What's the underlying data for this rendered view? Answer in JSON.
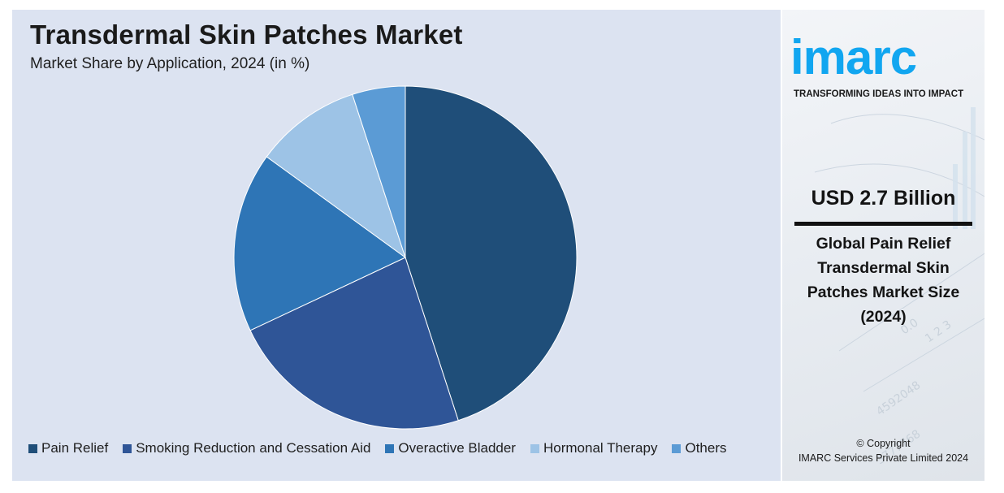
{
  "header": {
    "title": "Transdermal Skin Patches Market",
    "subtitle": "Market Share by Application, 2024 (in %)"
  },
  "chart_data": {
    "type": "pie",
    "title": "Transdermal Skin Patches Market",
    "subtitle": "Market Share by Application, 2024 (in %)",
    "start_angle_deg": 0,
    "direction": "clockwise",
    "legend_position": "bottom",
    "slices": [
      {
        "label": "Pain Relief",
        "value": 45,
        "color": "#1f4e79"
      },
      {
        "label": "Smoking Reduction and Cessation Aid",
        "value": 23,
        "color": "#2f5597"
      },
      {
        "label": "Overactive Bladder",
        "value": 17,
        "color": "#2e75b6"
      },
      {
        "label": "Hormonal Therapy",
        "value": 10,
        "color": "#9dc3e6"
      },
      {
        "label": "Others",
        "value": 5,
        "color": "#5b9bd5"
      }
    ]
  },
  "sidebar": {
    "logo_text": "imarc",
    "logo_tagline": "TRANSFORMING IDEAS INTO IMPACT",
    "logo_color": "#11a6f0",
    "market_size": "USD 2.7 Billion",
    "market_size_desc": "Global Pain Relief Transdermal Skin Patches Market Size (2024)",
    "copyright_line1": "© Copyright",
    "copyright_line2": "IMARC Services Private Limited 2024"
  }
}
